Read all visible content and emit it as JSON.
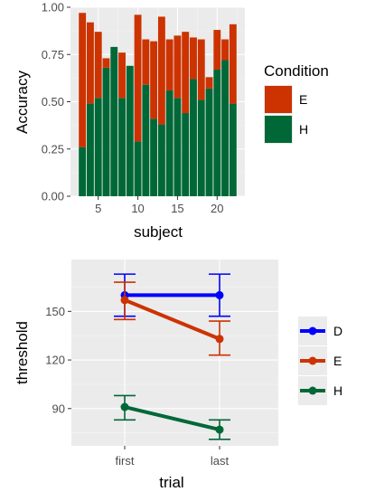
{
  "chart_data": [
    {
      "type": "bar",
      "stacked": true,
      "xlabel": "subject",
      "ylabel": "Accuracy",
      "x_ticks": [
        "5",
        "10",
        "15",
        "20"
      ],
      "y_ticks": [
        "0.00",
        "0.25",
        "0.50",
        "0.75",
        "1.00"
      ],
      "xlim": [
        1.5,
        23.5
      ],
      "ylim": [
        0,
        1
      ],
      "grid": true,
      "legend_title": "Condition",
      "legend_position": "right",
      "categories": [
        3,
        4,
        5,
        6,
        7,
        8,
        9,
        10,
        11,
        12,
        13,
        14,
        15,
        16,
        17,
        18,
        19,
        20,
        21,
        22
      ],
      "series": [
        {
          "name": "H",
          "color": "#006837",
          "values": [
            0.26,
            0.49,
            0.52,
            0.68,
            0.79,
            0.52,
            0.69,
            0.29,
            0.59,
            0.41,
            0.38,
            0.56,
            0.52,
            0.44,
            0.62,
            0.51,
            0.57,
            0.67,
            0.72,
            0.49
          ]
        },
        {
          "name": "E",
          "color": "#cc3300",
          "values": [
            0.71,
            0.43,
            0.35,
            0.05,
            0.0,
            0.24,
            0.0,
            0.67,
            0.24,
            0.41,
            0.57,
            0.27,
            0.33,
            0.43,
            0.22,
            0.32,
            0.06,
            0.21,
            0.11,
            0.42
          ]
        }
      ]
    },
    {
      "type": "line",
      "xlabel": "trial",
      "ylabel": "threshold",
      "categories": [
        "first",
        "last"
      ],
      "y_ticks": [
        90,
        120,
        150
      ],
      "ylim": [
        67,
        182
      ],
      "grid": true,
      "legend_position": "right",
      "series": [
        {
          "name": "D",
          "color": "#0000ff",
          "values": [
            160,
            160
          ],
          "error": [
            [
              147,
              173
            ],
            [
              147,
              173
            ]
          ]
        },
        {
          "name": "E",
          "color": "#cc3300",
          "values": [
            157,
            133
          ],
          "error": [
            [
              145,
              168
            ],
            [
              123,
              144
            ]
          ]
        },
        {
          "name": "H",
          "color": "#006837",
          "values": [
            91,
            77
          ],
          "error": [
            [
              83,
              98
            ],
            [
              71,
              83
            ]
          ]
        }
      ]
    }
  ]
}
